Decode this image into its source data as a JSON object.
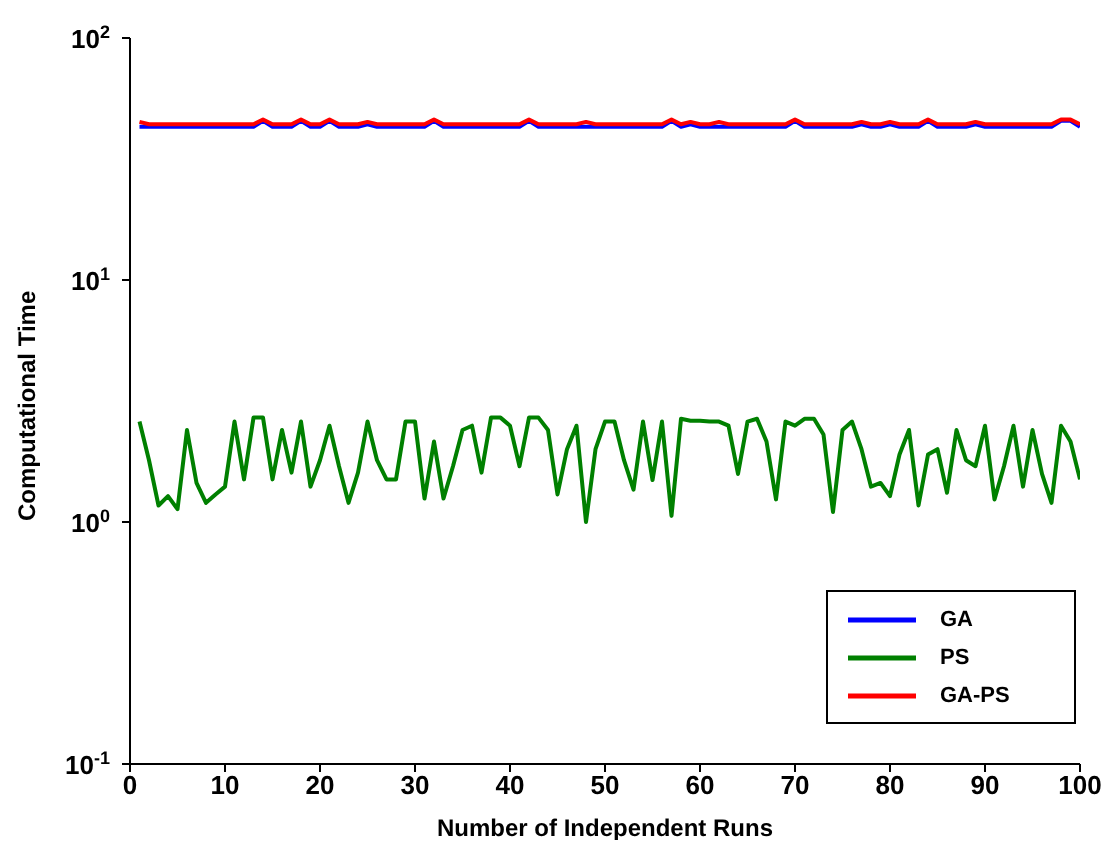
{
  "chart_data": {
    "type": "line",
    "xlabel": "Number of Independent Runs",
    "ylabel": "Computational Time",
    "x": [
      1,
      2,
      3,
      4,
      5,
      6,
      7,
      8,
      9,
      10,
      11,
      12,
      13,
      14,
      15,
      16,
      17,
      18,
      19,
      20,
      21,
      22,
      23,
      24,
      25,
      26,
      27,
      28,
      29,
      30,
      31,
      32,
      33,
      34,
      35,
      36,
      37,
      38,
      39,
      40,
      41,
      42,
      43,
      44,
      45,
      46,
      47,
      48,
      49,
      50,
      51,
      52,
      53,
      54,
      55,
      56,
      57,
      58,
      59,
      60,
      61,
      62,
      63,
      64,
      65,
      66,
      67,
      68,
      69,
      70,
      71,
      72,
      73,
      74,
      75,
      76,
      77,
      78,
      79,
      80,
      81,
      82,
      83,
      84,
      85,
      86,
      87,
      88,
      89,
      90,
      91,
      92,
      93,
      94,
      95,
      96,
      97,
      98,
      99,
      100
    ],
    "series": [
      {
        "name": "GA",
        "color": "#0000ff",
        "values": [
          43,
          43,
          43,
          43,
          43,
          43,
          43,
          43,
          43,
          43,
          43,
          43,
          43,
          45.5,
          43,
          43,
          43,
          45.5,
          43,
          43,
          45.5,
          43,
          43,
          43,
          44,
          43,
          43,
          43,
          43,
          43,
          43,
          45.5,
          43,
          43,
          43,
          43,
          43,
          43,
          43,
          43,
          43,
          45.5,
          43,
          43,
          43,
          43,
          43,
          43,
          43,
          43,
          43,
          43,
          43,
          43,
          43,
          43,
          45.5,
          43,
          44,
          43,
          43,
          43,
          43,
          43,
          43,
          43,
          43,
          43,
          43,
          45.5,
          43,
          43,
          43,
          43,
          43,
          43,
          44,
          43,
          43,
          44,
          43,
          43,
          43,
          45.5,
          43,
          43,
          43,
          43,
          44,
          43,
          43,
          43,
          43,
          43,
          43,
          43,
          43,
          45.5,
          45.5,
          43
        ]
      },
      {
        "name": "PS",
        "color": "#008000",
        "values": [
          2.6,
          1.8,
          1.17,
          1.28,
          1.13,
          2.4,
          1.45,
          1.2,
          1.3,
          1.4,
          2.6,
          1.5,
          2.7,
          2.7,
          1.5,
          2.4,
          1.6,
          2.6,
          1.4,
          1.8,
          2.5,
          1.7,
          1.2,
          1.6,
          2.6,
          1.8,
          1.5,
          1.5,
          2.6,
          2.6,
          1.25,
          2.15,
          1.25,
          1.7,
          2.4,
          2.5,
          1.6,
          2.7,
          2.7,
          2.5,
          1.7,
          2.7,
          2.7,
          2.4,
          1.3,
          2.0,
          2.5,
          1.0,
          2.0,
          2.6,
          2.6,
          1.8,
          1.36,
          2.6,
          1.49,
          2.6,
          1.06,
          2.67,
          2.62,
          2.62,
          2.6,
          2.6,
          2.5,
          1.58,
          2.6,
          2.67,
          2.15,
          1.24,
          2.6,
          2.5,
          2.67,
          2.67,
          2.3,
          1.1,
          2.4,
          2.6,
          2.0,
          1.4,
          1.45,
          1.28,
          1.9,
          2.4,
          1.17,
          1.9,
          2.0,
          1.32,
          2.4,
          1.8,
          1.7,
          2.5,
          1.24,
          1.7,
          2.5,
          1.4,
          2.4,
          1.58,
          1.2,
          2.5,
          2.15,
          1.5
        ]
      },
      {
        "name": "GA-PS",
        "color": "#ff0000",
        "values": [
          45,
          44,
          44,
          44,
          44,
          44,
          44,
          44,
          44,
          44,
          44,
          44,
          44,
          46,
          44,
          44,
          44,
          46,
          44,
          44,
          46,
          44,
          44,
          44,
          45,
          44,
          44,
          44,
          44,
          44,
          44,
          46,
          44,
          44,
          44,
          44,
          44,
          44,
          44,
          44,
          44,
          46,
          44,
          44,
          44,
          44,
          44,
          45,
          44,
          44,
          44,
          44,
          44,
          44,
          44,
          44,
          46,
          44,
          45,
          44,
          44,
          45,
          44,
          44,
          44,
          44,
          44,
          44,
          44,
          46,
          44,
          44,
          44,
          44,
          44,
          44,
          45,
          44,
          44,
          45,
          44,
          44,
          44,
          46,
          44,
          44,
          44,
          44,
          45,
          44,
          44,
          44,
          44,
          44,
          44,
          44,
          44,
          46,
          46,
          44
        ]
      }
    ],
    "xlim": [
      0,
      100
    ],
    "xticks": [
      0,
      10,
      20,
      30,
      40,
      50,
      60,
      70,
      80,
      90,
      100
    ],
    "ylim": [
      0.1,
      100
    ],
    "yticks": [
      {
        "value": 0.1,
        "label": "10$^{-1}$"
      },
      {
        "value": 1,
        "label": "10$^{0}$"
      },
      {
        "value": 10,
        "label": "10$^{1}$"
      },
      {
        "value": 100,
        "label": "10$^{2}$"
      }
    ],
    "log": "y",
    "grid": false,
    "legend": "bottom right",
    "marker": "none",
    "line_style": "solid"
  }
}
